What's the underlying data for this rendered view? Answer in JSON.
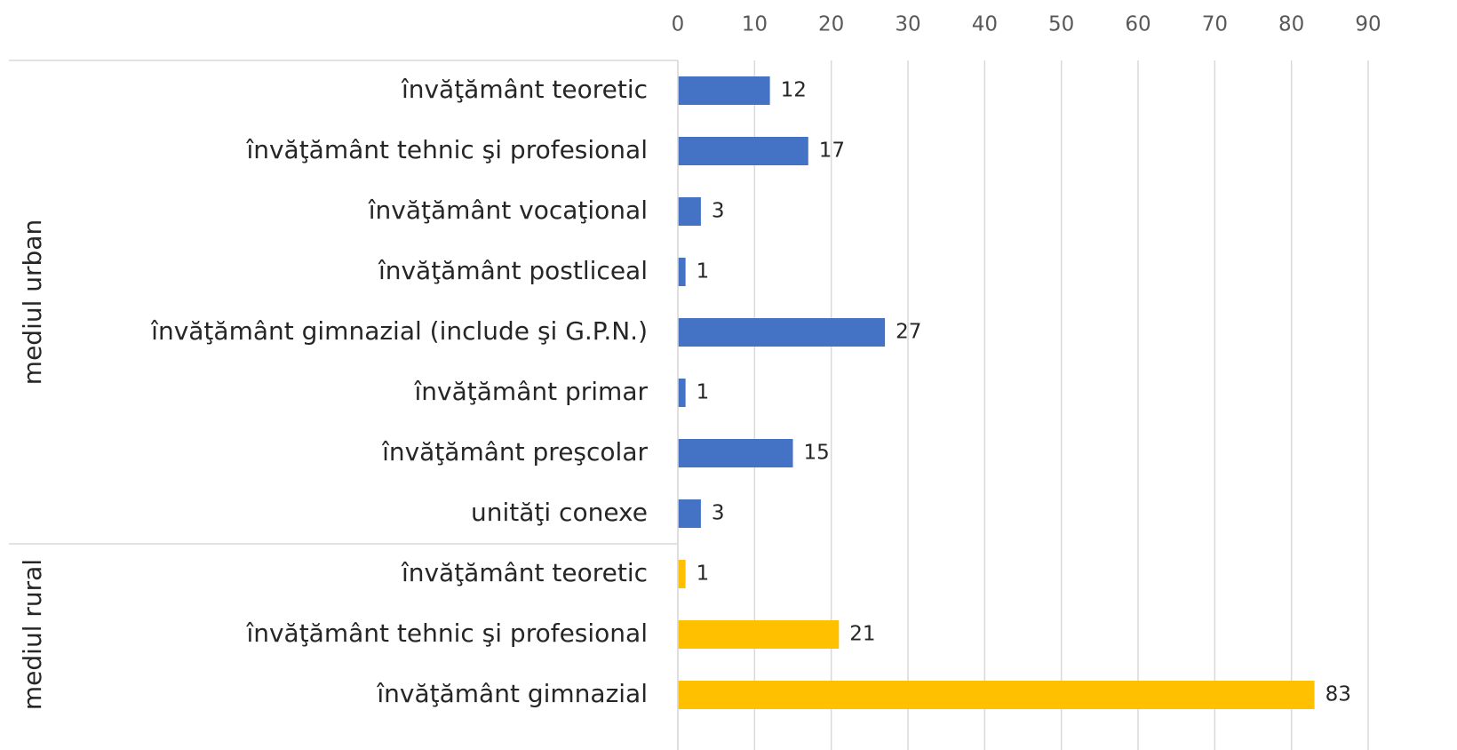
{
  "chart_data": {
    "type": "bar",
    "orientation": "horizontal",
    "xlim": [
      0,
      90
    ],
    "xticks": [
      0,
      10,
      20,
      30,
      40,
      50,
      60,
      70,
      80,
      90
    ],
    "grid": true,
    "groups": [
      {
        "name": "mediul urban",
        "color": "#4472c4",
        "categories": [
          "învăţământ teoretic",
          "învăţământ tehnic şi profesional",
          "învăţământ vocaţional",
          "învăţământ postliceal",
          "învăţământ gimnazial (include şi G.P.N.)",
          "învăţământ primar",
          "învăţământ preşcolar",
          "unităţi conexe"
        ],
        "values": [
          12,
          17,
          3,
          1,
          27,
          1,
          15,
          3
        ]
      },
      {
        "name": "mediul rural",
        "color": "#ffc000",
        "categories": [
          "învăţământ teoretic",
          "învăţământ tehnic şi profesional",
          "învăţământ gimnazial"
        ],
        "values": [
          1,
          21,
          83
        ]
      }
    ]
  }
}
